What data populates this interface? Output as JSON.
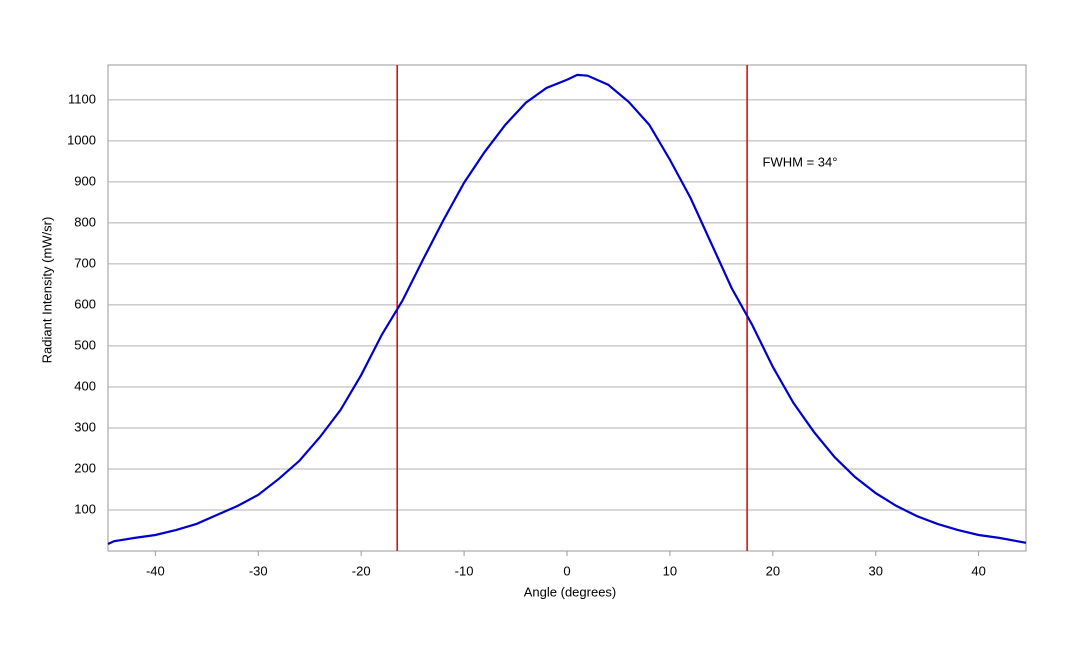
{
  "chart_data": {
    "type": "line",
    "x_label": "Angle (degrees)",
    "y_label": "Radiant Intensity (mW/sr)",
    "x": [
      -44.6,
      -44,
      -42,
      -40,
      -38,
      -36,
      -34,
      -32,
      -30,
      -28,
      -26,
      -24,
      -22,
      -20,
      -18,
      -16,
      -14,
      -12,
      -10,
      -8,
      -6,
      -4,
      -2,
      0,
      1,
      2,
      4,
      6,
      8,
      10,
      12,
      14,
      16,
      18,
      20,
      22,
      24,
      26,
      28,
      30,
      32,
      34,
      36,
      38,
      40,
      42,
      44.6
    ],
    "series": [
      {
        "color": "#0000cc",
        "values": [
          17,
          24,
          32,
          39,
          51,
          66,
          88,
          110,
          137,
          176,
          220,
          278,
          344,
          429,
          527,
          610,
          710,
          807,
          898,
          973,
          1039,
          1093,
          1129,
          1149,
          1161,
          1159,
          1137,
          1095,
          1039,
          954,
          861,
          751,
          641,
          551,
          449,
          361,
          290,
          229,
          180,
          141,
          110,
          85,
          66,
          51,
          39,
          32,
          20
        ]
      }
    ],
    "vlines": [
      -16.5,
      17.5
    ],
    "vline_color": "#dd0000",
    "annotations": [
      {
        "text": "FWHM = 34°",
        "x": 19,
        "y": 946
      }
    ],
    "xlim": [
      -44.6,
      44.6
    ],
    "ylim": [
      0,
      1185
    ],
    "xticks": [
      -40,
      -30,
      -20,
      -10,
      0,
      10,
      20,
      30,
      40
    ],
    "yticks": [
      100,
      200,
      300,
      400,
      500,
      600,
      700,
      800,
      900,
      1000,
      1100
    ],
    "grid": true
  }
}
